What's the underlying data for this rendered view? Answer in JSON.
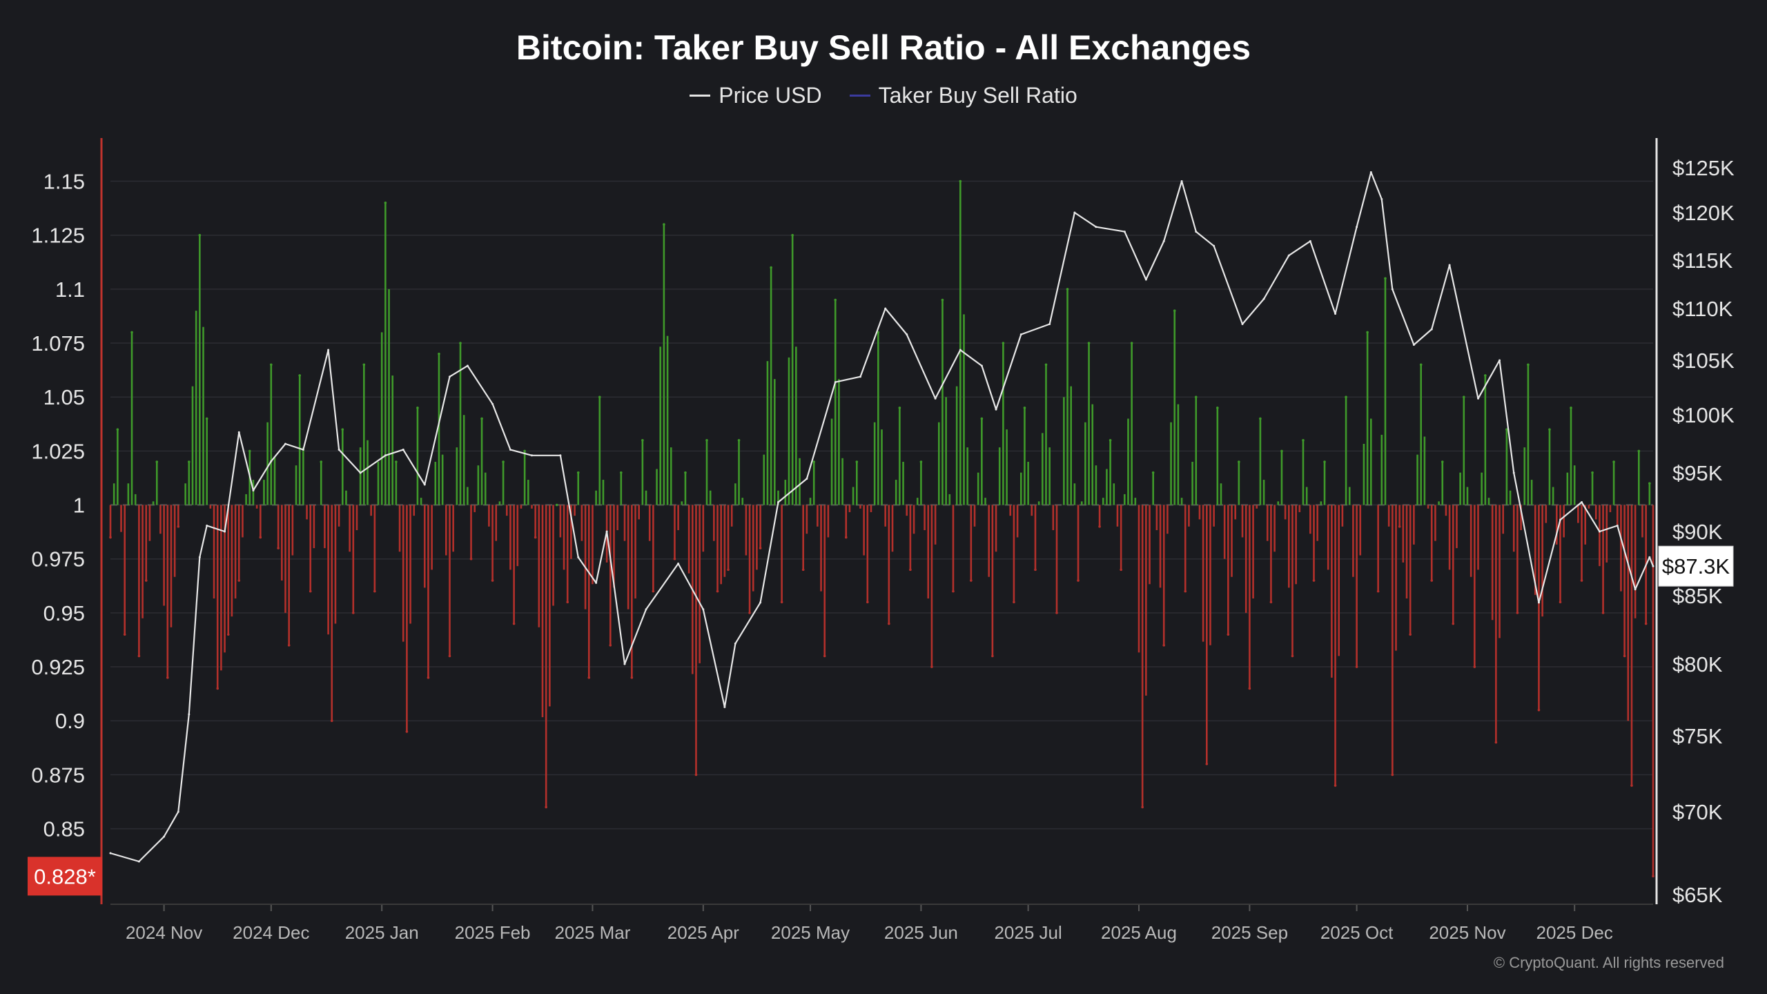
{
  "chart_data": {
    "type": "line",
    "title": "Bitcoin: Taker Buy Sell Ratio - All Exchanges",
    "legend": [
      "Price USD",
      "Taker Buy Sell Ratio"
    ],
    "legend_colors": [
      "#e6e6e6",
      "#3b3b9e"
    ],
    "legend_placement": "top-center",
    "x_ticks": [
      "2024 Nov",
      "2024 Dec",
      "2025 Jan",
      "2025 Feb",
      "2025 Mar",
      "2025 Apr",
      "2025 May",
      "2025 Jun",
      "2025 Jul",
      "2025 Aug",
      "2025 Sep",
      "2025 Oct",
      "2025 Nov",
      "2025 Dec"
    ],
    "x_range": [
      "2024-10-17",
      "2025-12-23"
    ],
    "y_left": {
      "ticks": [
        "1.15",
        "1.125",
        "1.1",
        "1.075",
        "1.05",
        "1.025",
        "1",
        "0.975",
        "0.95",
        "0.925",
        "0.9",
        "0.875",
        "0.85"
      ],
      "range": [
        0.815,
        1.17
      ],
      "baseline": 1.0,
      "current_label": "0.828*",
      "current_value": 0.828
    },
    "y_right": {
      "ticks": [
        "$125K",
        "$120K",
        "$115K",
        "$110K",
        "$105K",
        "$100K",
        "$95K",
        "$90K",
        "$85K",
        "$80K",
        "$75K",
        "$70K",
        "$65K"
      ],
      "current_label": "$87.3K",
      "current_value": 87.3
    },
    "colors": {
      "above_baseline": "#3f9a2a",
      "below_baseline": "#b3302b",
      "price_line": "#e8e8e8",
      "current_ratio_badge": "#d9322b",
      "left_axis_line": "#c0332d",
      "right_axis_line": "#e6e6e6"
    },
    "series": [
      {
        "name": "Price USD",
        "units": "$K",
        "points": [
          [
            "2024-10-17",
            67.5
          ],
          [
            "2024-10-25",
            67.0
          ],
          [
            "2024-11-01",
            68.5
          ],
          [
            "2024-11-05",
            70.0
          ],
          [
            "2024-11-08",
            76.5
          ],
          [
            "2024-11-11",
            88.0
          ],
          [
            "2024-11-13",
            90.5
          ],
          [
            "2024-11-18",
            90.0
          ],
          [
            "2024-11-22",
            98.5
          ],
          [
            "2024-11-26",
            93.5
          ],
          [
            "2024-12-01",
            96.0
          ],
          [
            "2024-12-05",
            97.5
          ],
          [
            "2024-12-10",
            97.0
          ],
          [
            "2024-12-17",
            106.0
          ],
          [
            "2024-12-20",
            97.0
          ],
          [
            "2024-12-26",
            95.0
          ],
          [
            "2025-01-02",
            96.5
          ],
          [
            "2025-01-07",
            97.0
          ],
          [
            "2025-01-13",
            94.0
          ],
          [
            "2025-01-20",
            103.5
          ],
          [
            "2025-01-25",
            104.5
          ],
          [
            "2025-02-01",
            101.0
          ],
          [
            "2025-02-06",
            97.0
          ],
          [
            "2025-02-12",
            96.5
          ],
          [
            "2025-02-20",
            96.5
          ],
          [
            "2025-02-25",
            88.0
          ],
          [
            "2025-03-02",
            86.0
          ],
          [
            "2025-03-05",
            90.0
          ],
          [
            "2025-03-10",
            80.0
          ],
          [
            "2025-03-16",
            84.0
          ],
          [
            "2025-03-25",
            87.5
          ],
          [
            "2025-04-01",
            84.0
          ],
          [
            "2025-04-07",
            77.0
          ],
          [
            "2025-04-10",
            81.5
          ],
          [
            "2025-04-17",
            84.5
          ],
          [
            "2025-04-22",
            92.5
          ],
          [
            "2025-04-30",
            94.5
          ],
          [
            "2025-05-08",
            103.0
          ],
          [
            "2025-05-15",
            103.5
          ],
          [
            "2025-05-22",
            110.0
          ],
          [
            "2025-05-28",
            107.5
          ],
          [
            "2025-06-05",
            101.5
          ],
          [
            "2025-06-12",
            106.0
          ],
          [
            "2025-06-18",
            104.5
          ],
          [
            "2025-06-22",
            100.5
          ],
          [
            "2025-06-29",
            107.5
          ],
          [
            "2025-07-07",
            108.5
          ],
          [
            "2025-07-14",
            120.0
          ],
          [
            "2025-07-20",
            118.5
          ],
          [
            "2025-07-28",
            118.0
          ],
          [
            "2025-08-03",
            113.0
          ],
          [
            "2025-08-08",
            117.0
          ],
          [
            "2025-08-13",
            123.5
          ],
          [
            "2025-08-17",
            118.0
          ],
          [
            "2025-08-22",
            116.5
          ],
          [
            "2025-08-30",
            108.5
          ],
          [
            "2025-09-05",
            111.0
          ],
          [
            "2025-09-12",
            115.5
          ],
          [
            "2025-09-18",
            117.0
          ],
          [
            "2025-09-25",
            109.5
          ],
          [
            "2025-10-01",
            118.5
          ],
          [
            "2025-10-05",
            124.5
          ],
          [
            "2025-10-08",
            121.5
          ],
          [
            "2025-10-11",
            112.0
          ],
          [
            "2025-10-17",
            106.5
          ],
          [
            "2025-10-22",
            108.0
          ],
          [
            "2025-10-27",
            114.5
          ],
          [
            "2025-11-04",
            101.5
          ],
          [
            "2025-11-10",
            105.0
          ],
          [
            "2025-11-14",
            95.0
          ],
          [
            "2025-11-21",
            84.5
          ],
          [
            "2025-11-27",
            91.0
          ],
          [
            "2025-12-03",
            92.5
          ],
          [
            "2025-12-08",
            90.0
          ],
          [
            "2025-12-13",
            90.5
          ],
          [
            "2025-12-18",
            85.5
          ],
          [
            "2025-12-22",
            88.0
          ],
          [
            "2025-12-23",
            87.3
          ]
        ]
      },
      {
        "name": "Taker Buy Sell Ratio",
        "units": "ratio",
        "points": [
          [
            "2024-10-17",
            0.985
          ],
          [
            "2024-10-19",
            1.035
          ],
          [
            "2024-10-21",
            0.94
          ],
          [
            "2024-10-23",
            1.08
          ],
          [
            "2024-10-25",
            0.93
          ],
          [
            "2024-10-27",
            0.965
          ],
          [
            "2024-10-30",
            1.02
          ],
          [
            "2024-11-02",
            0.92
          ],
          [
            "2024-11-05",
            0.99
          ],
          [
            "2024-11-08",
            1.02
          ],
          [
            "2024-11-11",
            1.125
          ],
          [
            "2024-11-13",
            1.04
          ],
          [
            "2024-11-16",
            0.915
          ],
          [
            "2024-11-19",
            0.94
          ],
          [
            "2024-11-22",
            0.965
          ],
          [
            "2024-11-25",
            1.025
          ],
          [
            "2024-11-28",
            0.985
          ],
          [
            "2024-12-01",
            1.065
          ],
          [
            "2024-12-03",
            0.98
          ],
          [
            "2024-12-06",
            0.935
          ],
          [
            "2024-12-09",
            1.06
          ],
          [
            "2024-12-12",
            0.96
          ],
          [
            "2024-12-15",
            1.02
          ],
          [
            "2024-12-18",
            0.9
          ],
          [
            "2024-12-21",
            1.035
          ],
          [
            "2024-12-24",
            0.95
          ],
          [
            "2024-12-27",
            1.065
          ],
          [
            "2024-12-30",
            0.96
          ],
          [
            "2025-01-02",
            1.14
          ],
          [
            "2025-01-05",
            1.02
          ],
          [
            "2025-01-08",
            0.895
          ],
          [
            "2025-01-11",
            1.045
          ],
          [
            "2025-01-14",
            0.92
          ],
          [
            "2025-01-17",
            1.07
          ],
          [
            "2025-01-20",
            0.93
          ],
          [
            "2025-01-23",
            1.075
          ],
          [
            "2025-01-26",
            0.975
          ],
          [
            "2025-01-29",
            1.04
          ],
          [
            "2025-02-01",
            0.965
          ],
          [
            "2025-02-04",
            1.02
          ],
          [
            "2025-02-07",
            0.945
          ],
          [
            "2025-02-10",
            1.025
          ],
          [
            "2025-02-13",
            0.985
          ],
          [
            "2025-02-16",
            0.86
          ],
          [
            "2025-02-19",
            1.0
          ],
          [
            "2025-02-22",
            0.955
          ],
          [
            "2025-02-25",
            1.015
          ],
          [
            "2025-02-28",
            0.92
          ],
          [
            "2025-03-03",
            1.05
          ],
          [
            "2025-03-06",
            0.935
          ],
          [
            "2025-03-09",
            1.015
          ],
          [
            "2025-03-12",
            0.92
          ],
          [
            "2025-03-15",
            1.03
          ],
          [
            "2025-03-18",
            0.96
          ],
          [
            "2025-03-21",
            1.13
          ],
          [
            "2025-03-24",
            0.975
          ],
          [
            "2025-03-27",
            1.015
          ],
          [
            "2025-03-30",
            0.875
          ],
          [
            "2025-04-02",
            1.03
          ],
          [
            "2025-04-05",
            0.96
          ],
          [
            "2025-04-08",
            0.97
          ],
          [
            "2025-04-11",
            1.03
          ],
          [
            "2025-04-14",
            0.95
          ],
          [
            "2025-04-17",
            0.98
          ],
          [
            "2025-04-20",
            1.11
          ],
          [
            "2025-04-23",
            0.955
          ],
          [
            "2025-04-26",
            1.125
          ],
          [
            "2025-04-29",
            0.97
          ],
          [
            "2025-05-02",
            1.02
          ],
          [
            "2025-05-05",
            0.93
          ],
          [
            "2025-05-08",
            1.095
          ],
          [
            "2025-05-11",
            0.985
          ],
          [
            "2025-05-14",
            1.02
          ],
          [
            "2025-05-17",
            0.955
          ],
          [
            "2025-05-20",
            1.08
          ],
          [
            "2025-05-23",
            0.945
          ],
          [
            "2025-05-26",
            1.045
          ],
          [
            "2025-05-29",
            0.97
          ],
          [
            "2025-06-01",
            1.02
          ],
          [
            "2025-06-04",
            0.925
          ],
          [
            "2025-06-07",
            1.095
          ],
          [
            "2025-06-10",
            0.96
          ],
          [
            "2025-06-12",
            1.15
          ],
          [
            "2025-06-15",
            0.965
          ],
          [
            "2025-06-18",
            1.04
          ],
          [
            "2025-06-21",
            0.93
          ],
          [
            "2025-06-24",
            1.075
          ],
          [
            "2025-06-27",
            0.955
          ],
          [
            "2025-06-30",
            1.045
          ],
          [
            "2025-07-03",
            0.97
          ],
          [
            "2025-07-06",
            1.065
          ],
          [
            "2025-07-09",
            0.95
          ],
          [
            "2025-07-12",
            1.1
          ],
          [
            "2025-07-15",
            0.965
          ],
          [
            "2025-07-18",
            1.075
          ],
          [
            "2025-07-21",
            0.99
          ],
          [
            "2025-07-24",
            1.03
          ],
          [
            "2025-07-27",
            0.97
          ],
          [
            "2025-07-30",
            1.075
          ],
          [
            "2025-08-02",
            0.86
          ],
          [
            "2025-08-05",
            1.015
          ],
          [
            "2025-08-08",
            0.935
          ],
          [
            "2025-08-11",
            1.09
          ],
          [
            "2025-08-14",
            0.96
          ],
          [
            "2025-08-17",
            1.05
          ],
          [
            "2025-08-20",
            0.88
          ],
          [
            "2025-08-23",
            1.045
          ],
          [
            "2025-08-26",
            0.94
          ],
          [
            "2025-08-29",
            1.02
          ],
          [
            "2025-09-01",
            0.915
          ],
          [
            "2025-09-04",
            1.04
          ],
          [
            "2025-09-07",
            0.955
          ],
          [
            "2025-09-10",
            1.025
          ],
          [
            "2025-09-13",
            0.93
          ],
          [
            "2025-09-16",
            1.03
          ],
          [
            "2025-09-19",
            0.965
          ],
          [
            "2025-09-22",
            1.02
          ],
          [
            "2025-09-25",
            0.87
          ],
          [
            "2025-09-28",
            1.05
          ],
          [
            "2025-10-01",
            0.925
          ],
          [
            "2025-10-04",
            1.08
          ],
          [
            "2025-10-07",
            0.96
          ],
          [
            "2025-10-09",
            1.105
          ],
          [
            "2025-10-11",
            0.875
          ],
          [
            "2025-10-13",
            0.99
          ],
          [
            "2025-10-16",
            0.94
          ],
          [
            "2025-10-19",
            1.065
          ],
          [
            "2025-10-22",
            0.965
          ],
          [
            "2025-10-25",
            1.02
          ],
          [
            "2025-10-28",
            0.945
          ],
          [
            "2025-10-31",
            1.05
          ],
          [
            "2025-11-03",
            0.925
          ],
          [
            "2025-11-06",
            1.06
          ],
          [
            "2025-11-09",
            0.89
          ],
          [
            "2025-11-12",
            1.035
          ],
          [
            "2025-11-15",
            0.95
          ],
          [
            "2025-11-18",
            1.065
          ],
          [
            "2025-11-21",
            0.905
          ],
          [
            "2025-11-24",
            1.035
          ],
          [
            "2025-11-27",
            0.955
          ],
          [
            "2025-11-30",
            1.045
          ],
          [
            "2025-12-03",
            0.965
          ],
          [
            "2025-12-06",
            1.015
          ],
          [
            "2025-12-09",
            0.95
          ],
          [
            "2025-12-12",
            1.02
          ],
          [
            "2025-12-15",
            0.93
          ],
          [
            "2025-12-17",
            0.87
          ],
          [
            "2025-12-19",
            1.025
          ],
          [
            "2025-12-21",
            0.945
          ],
          [
            "2025-12-22",
            1.01
          ],
          [
            "2025-12-23",
            0.828
          ]
        ]
      }
    ]
  },
  "footer": "© CryptoQuant. All rights reserved"
}
